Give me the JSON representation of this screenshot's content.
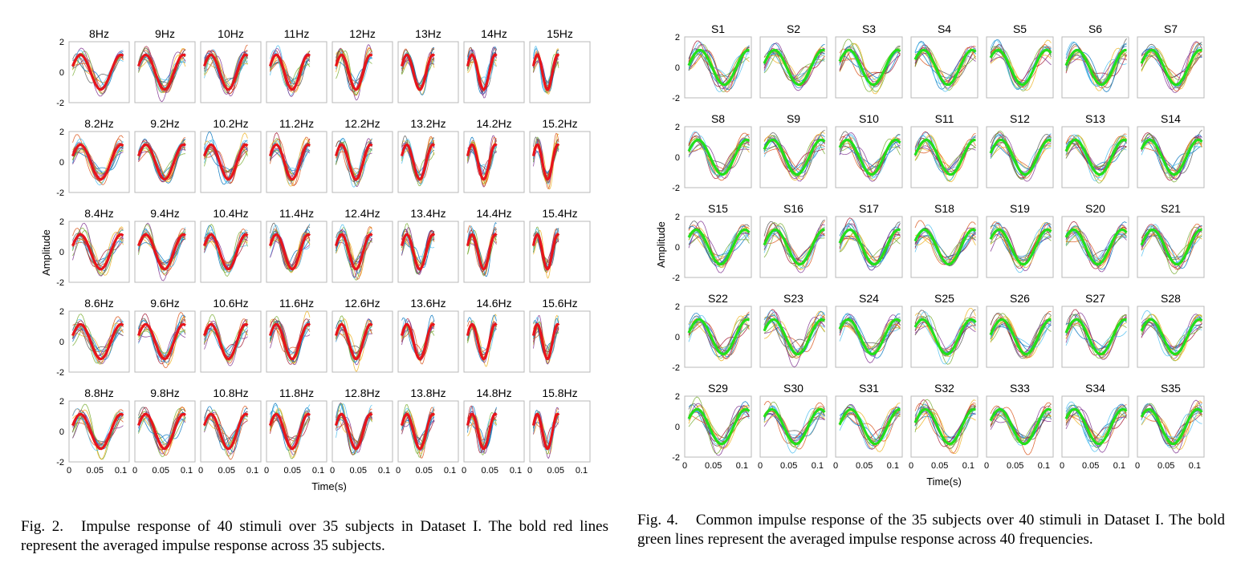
{
  "fig2": {
    "panel_titles": [
      [
        "8Hz",
        "9Hz",
        "10Hz",
        "11Hz",
        "12Hz",
        "13Hz",
        "14Hz",
        "15Hz"
      ],
      [
        "8.2Hz",
        "9.2Hz",
        "10.2Hz",
        "11.2Hz",
        "12.2Hz",
        "13.2Hz",
        "14.2Hz",
        "15.2Hz"
      ],
      [
        "8.4Hz",
        "9.4Hz",
        "10.4Hz",
        "11.4Hz",
        "12.4Hz",
        "13.4Hz",
        "14.4Hz",
        "15.4Hz"
      ],
      [
        "8.6Hz",
        "9.6Hz",
        "10.6Hz",
        "11.6Hz",
        "12.6Hz",
        "13.6Hz",
        "14.6Hz",
        "15.6Hz"
      ],
      [
        "8.8Hz",
        "9.8Hz",
        "10.8Hz",
        "11.8Hz",
        "12.8Hz",
        "13.8Hz",
        "14.8Hz",
        "15.8Hz"
      ]
    ],
    "ylabel": "Amplitude",
    "xlabel": "Time(s)",
    "yticks": [
      "2",
      "0",
      "-2"
    ],
    "xticks": [
      "0",
      "0.05",
      "0.1"
    ],
    "mean_color": "#e8141b"
  },
  "fig4": {
    "panel_titles": [
      [
        "S1",
        "S2",
        "S3",
        "S4",
        "S5",
        "S6",
        "S7"
      ],
      [
        "S8",
        "S9",
        "S10",
        "S11",
        "S12",
        "S13",
        "S14"
      ],
      [
        "S15",
        "S16",
        "S17",
        "S18",
        "S19",
        "S20",
        "S21"
      ],
      [
        "S22",
        "S23",
        "S24",
        "S25",
        "S26",
        "S27",
        "S28"
      ],
      [
        "S29",
        "S30",
        "S31",
        "S32",
        "S33",
        "S34",
        "S35"
      ]
    ],
    "ylabel": "Amplitude",
    "xlabel": "Time(s)",
    "yticks": [
      "2",
      "0",
      "-2"
    ],
    "xticks": [
      "0",
      "0.05",
      "0.1"
    ],
    "mean_color": "#22e01a"
  },
  "captions": {
    "fig2_label": "Fig. 2.",
    "fig2_text": "Impulse response of 40 stimuli over 35 subjects in Dataset I. The bold red lines represent the averaged impulse response across 35 subjects.",
    "fig4_label": "Fig. 4.",
    "fig4_text": "Common impulse response of the 35 subjects over 40 stimuli in Dataset I. The bold green lines represent the averaged impulse response across 40 frequencies."
  },
  "colors": {
    "thin_lines": [
      "#0072bd",
      "#d95319",
      "#edb120",
      "#7e2f8e",
      "#77ac30",
      "#4dbeee",
      "#a2142f",
      "#555555"
    ]
  }
}
